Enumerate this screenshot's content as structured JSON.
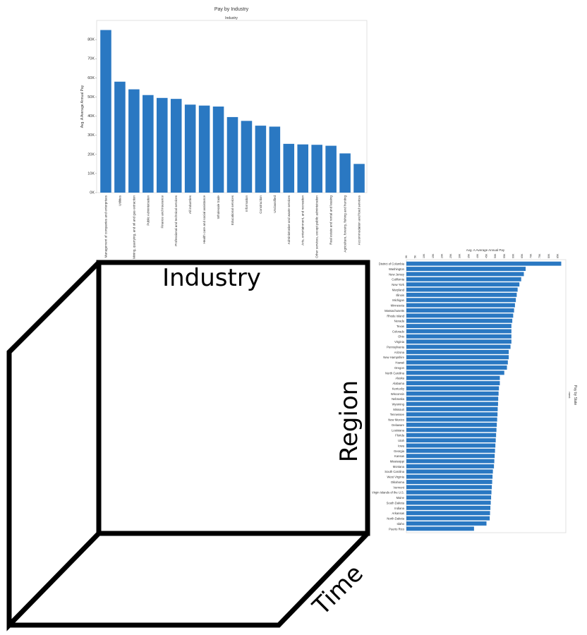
{
  "cube": {
    "top_label": "Industry",
    "right_label": "Region",
    "diagonal_label": "Time"
  },
  "chart_data": [
    {
      "type": "bar",
      "title": "Pay by Industry",
      "subtitle": "Industry",
      "ylabel": "Avg. A Average Annual Pay",
      "ylim": [
        0,
        90000
      ],
      "yticks": [
        0,
        10000,
        20000,
        30000,
        40000,
        50000,
        60000,
        70000,
        80000
      ],
      "ytick_labels": [
        "0K",
        "10K",
        "20K",
        "30K",
        "40K",
        "50K",
        "60K",
        "70K",
        "80K"
      ],
      "bar_color": "#2a78c2",
      "categories": [
        "Management of companies and enterprises",
        "Utilities",
        "Mining, quarrying, and oil and gas extraction",
        "Public Administration",
        "Finance and insurance",
        "Professional and technical services",
        "All industries",
        "Health care and social assistance",
        "Wholesale trade",
        "Educational services",
        "Information",
        "Construction",
        "Unclassified",
        "Administrative and waste services",
        "Arts, entertainment, and recreation",
        "Other services, except public administration",
        "Real estate and rental and leasing",
        "Agriculture, forestry, fishing and hunting",
        "Accommodation and food services"
      ],
      "values": [
        85000,
        58000,
        54000,
        51000,
        49500,
        49000,
        46000,
        45500,
        45000,
        39500,
        37500,
        35000,
        34500,
        25500,
        25200,
        25000,
        24500,
        20500,
        15000
      ]
    },
    {
      "type": "bar",
      "orientation": "horizontal",
      "title": "Pay by State",
      "subtitle": "Avg. A Average Annual Pay",
      "side_label": "ment",
      "bar_color": "#2a78c2",
      "xlim": [
        0,
        88000
      ],
      "xticks": [
        0,
        5000,
        10000,
        15000,
        20000,
        25000,
        30000,
        35000,
        40000,
        45000,
        50000,
        55000,
        60000,
        65000,
        70000,
        75000,
        80000,
        85000
      ],
      "xtick_labels": [
        "0K",
        "5K",
        "10K",
        "15K",
        "20K",
        "25K",
        "30K",
        "35K",
        "40K",
        "45K",
        "50K",
        "55K",
        "60K",
        "65K",
        "70K",
        "75K",
        "80K",
        "85K"
      ],
      "categories": [
        "District of Columbia",
        "Washington",
        "New Jersey",
        "California",
        "New York",
        "Maryland",
        "Illinois",
        "Michigan",
        "Minnesota",
        "Massachusetts",
        "Rhode Island",
        "Nevada",
        "Texas",
        "Colorado",
        "Ohio",
        "Virginia",
        "Pennsylvania",
        "Arizona",
        "New Hampshire",
        "Hawaii",
        "Oregon",
        "North Carolina",
        "Alaska",
        "Alabama",
        "Kentucky",
        "Wisconsin",
        "Nebraska",
        "Wyoming",
        "Missouri",
        "Tennessee",
        "New Mexico",
        "Delaware",
        "Louisiana",
        "Florida",
        "Utah",
        "Iowa",
        "Georgia",
        "Kansas",
        "Mississippi",
        "Montana",
        "South Carolina",
        "West Virginia",
        "Oklahoma",
        "Vermont",
        "Virgin Islands of the U.S.",
        "Maine",
        "South Dakota",
        "Indiana",
        "Arkansas",
        "North Dakota",
        "Idaho",
        "Puerto Rico"
      ],
      "values": [
        87000,
        67000,
        66000,
        64500,
        63500,
        62500,
        62000,
        61500,
        61000,
        60500,
        60000,
        59500,
        59000,
        59000,
        59000,
        59000,
        58500,
        57500,
        57500,
        57000,
        56500,
        55000,
        52500,
        52500,
        52000,
        51800,
        51600,
        51500,
        51300,
        51200,
        51000,
        50800,
        50600,
        50400,
        50200,
        50000,
        49800,
        49600,
        49400,
        49200,
        48600,
        48400,
        48200,
        48000,
        47800,
        47600,
        47400,
        47200,
        47000,
        46800,
        45000,
        38000
      ]
    }
  ]
}
